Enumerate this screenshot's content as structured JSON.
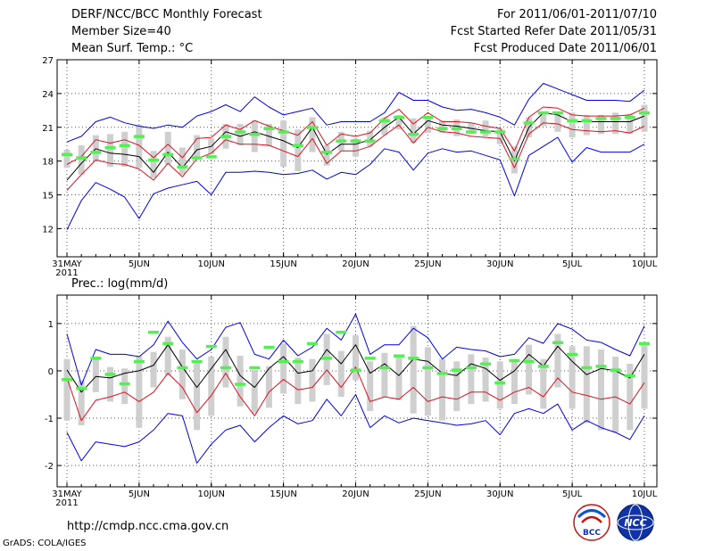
{
  "header": {
    "title": "DERF/NCC/BCC Monthly Forecast",
    "member_size": "Member Size=40",
    "variable1": "Mean Surf. Temp.: °C",
    "variable2": "Prec.: log(mm/d)",
    "range": "For 2011/06/01-2011/07/10",
    "started": "Fcst Started Refer Date 2011/05/31",
    "produced": "Fcst Produced Date 2011/06/01"
  },
  "footer": {
    "url": "http://cmdp.ncc.cma.gov.cn",
    "grads": "GrADS: COLA/IGES",
    "logo1": "BCC",
    "logo2": "NCC"
  },
  "colors": {
    "ensemble_mean": "#000000",
    "spread_inner": "#e0101e",
    "spread_outer": "#0000ee",
    "box": "#cfcfcf",
    "observed_marker": "#55ee55",
    "grid": "#555555"
  },
  "chart_data": [
    {
      "type": "line",
      "title": "Mean Surf. Temp.: °C",
      "x": [
        0,
        1,
        2,
        3,
        4,
        5,
        6,
        7,
        8,
        9,
        10,
        11,
        12,
        13,
        14,
        15,
        16,
        17,
        18,
        19,
        20,
        21,
        22,
        23,
        24,
        25,
        26,
        27,
        28,
        29,
        30,
        31,
        32,
        33,
        34,
        35,
        36,
        37,
        38,
        39,
        40
      ],
      "ylim": [
        9.5,
        27
      ],
      "yticks": [
        12,
        15,
        18,
        21,
        24,
        27
      ],
      "xticks": [
        {
          "x": 0,
          "label": "31MAY",
          "label2": "2011"
        },
        {
          "x": 5,
          "label": "5JUN"
        },
        {
          "x": 10,
          "label": "10JUN"
        },
        {
          "x": 15,
          "label": "15JUN"
        },
        {
          "x": 20,
          "label": "20JUN"
        },
        {
          "x": 25,
          "label": "25JUN"
        },
        {
          "x": 30,
          "label": "30JUN"
        },
        {
          "x": 35,
          "label": "5JUL"
        },
        {
          "x": 40,
          "label": "10JUL"
        }
      ],
      "series": [
        {
          "name": "max",
          "role": "outer",
          "values": [
            19.7,
            20.2,
            21.5,
            21.9,
            21.4,
            21.1,
            20.9,
            21.2,
            21.0,
            22.0,
            22.4,
            23.0,
            22.4,
            23.7,
            22.8,
            22.1,
            22.4,
            22.7,
            21.2,
            21.5,
            21.5,
            21.5,
            22.3,
            24.1,
            23.4,
            23.4,
            22.8,
            22.5,
            22.6,
            22.3,
            21.9,
            21.2,
            23.5,
            24.9,
            24.4,
            23.9,
            23.4,
            23.4,
            23.4,
            23.3,
            24.3
          ]
        },
        {
          "name": "upper",
          "role": "inner",
          "values": [
            17.7,
            18.4,
            19.9,
            19.6,
            19.9,
            19.4,
            18.3,
            19.5,
            18.3,
            20.0,
            20.1,
            21.2,
            20.8,
            21.6,
            21.1,
            20.7,
            20.3,
            21.5,
            19.4,
            20.4,
            20.2,
            20.5,
            21.8,
            22.6,
            21.3,
            22.3,
            21.5,
            21.5,
            21.4,
            21.1,
            20.9,
            18.9,
            21.9,
            22.8,
            22.7,
            22.1,
            22.0,
            22.0,
            22.0,
            22.1,
            22.7
          ]
        },
        {
          "name": "mean",
          "role": "mean",
          "values": [
            16.3,
            17.8,
            19.1,
            18.7,
            18.6,
            18.4,
            17.0,
            18.8,
            17.4,
            19.0,
            19.3,
            20.6,
            20.2,
            20.6,
            20.2,
            19.8,
            19.2,
            21.0,
            18.6,
            19.5,
            19.5,
            19.9,
            21.0,
            21.9,
            20.4,
            21.6,
            21.2,
            21.1,
            20.9,
            20.7,
            20.6,
            18.0,
            21.0,
            22.3,
            22.1,
            21.5,
            21.5,
            21.5,
            21.5,
            21.5,
            22.0
          ]
        },
        {
          "name": "lower",
          "role": "inner",
          "values": [
            15.4,
            16.8,
            18.1,
            17.8,
            17.7,
            17.3,
            16.3,
            17.8,
            16.6,
            18.2,
            18.7,
            19.9,
            19.5,
            19.5,
            19.4,
            18.9,
            18.4,
            20.0,
            17.8,
            18.9,
            18.9,
            19.3,
            20.3,
            21.2,
            19.6,
            21.0,
            20.6,
            20.5,
            20.2,
            20.1,
            20.0,
            17.4,
            20.4,
            21.4,
            21.3,
            20.8,
            20.7,
            20.6,
            20.7,
            20.5,
            21.1
          ]
        },
        {
          "name": "min",
          "role": "outer",
          "values": [
            11.9,
            14.5,
            16.1,
            15.5,
            14.8,
            12.9,
            15.1,
            15.6,
            15.9,
            16.2,
            15.0,
            17.0,
            17.0,
            17.1,
            17.0,
            16.8,
            16.9,
            17.2,
            16.4,
            17.0,
            16.8,
            17.7,
            19.1,
            18.8,
            17.2,
            18.7,
            19.1,
            18.8,
            18.9,
            18.5,
            18.1,
            14.9,
            18.5,
            19.3,
            20.1,
            17.9,
            19.2,
            18.8,
            18.8,
            18.8,
            19.5
          ]
        },
        {
          "name": "box_top",
          "role": "box",
          "values": [
            19.0,
            19.4,
            20.3,
            20.4,
            20.6,
            21.2,
            18.9,
            20.6,
            19.2,
            20.3,
            20.0,
            21.3,
            21.3,
            21.6,
            21.3,
            21.6,
            20.8,
            21.9,
            19.4,
            20.6,
            20.0,
            20.7,
            21.9,
            22.1,
            21.8,
            22.0,
            21.6,
            21.7,
            21.4,
            21.6,
            20.9,
            19.3,
            21.9,
            22.4,
            22.4,
            22.3,
            22.1,
            22.1,
            22.3,
            22.2,
            23.0
          ]
        },
        {
          "name": "box_bottom",
          "role": "box",
          "values": [
            17.4,
            16.8,
            18.0,
            17.5,
            17.5,
            17.4,
            16.5,
            17.7,
            16.8,
            18.3,
            18.6,
            19.1,
            19.4,
            18.8,
            19.3,
            17.5,
            17.1,
            18.8,
            17.6,
            18.9,
            18.4,
            19.3,
            20.3,
            20.8,
            19.6,
            20.5,
            20.5,
            20.2,
            20.4,
            20.2,
            19.5,
            16.9,
            20.1,
            21.1,
            20.6,
            20.1,
            20.3,
            20.4,
            20.4,
            20.4,
            20.6
          ]
        },
        {
          "name": "observed",
          "role": "marker",
          "values": [
            18.6,
            18.3,
            18.8,
            19.2,
            19.4,
            20.2,
            18.1,
            18.6,
            17.5,
            18.3,
            18.4,
            20.2,
            20.6,
            20.4,
            20.9,
            20.6,
            19.4,
            21.0,
            18.8,
            19.8,
            19.8,
            19.8,
            21.6,
            21.9,
            20.4,
            21.9,
            20.9,
            20.9,
            20.6,
            20.6,
            20.6,
            18.2,
            21.4,
            22.3,
            22.3,
            21.6,
            21.6,
            21.8,
            21.8,
            21.9,
            22.3
          ]
        }
      ]
    },
    {
      "type": "line",
      "title": "Prec.: log(mm/d)",
      "x": [
        0,
        1,
        2,
        3,
        4,
        5,
        6,
        7,
        8,
        9,
        10,
        11,
        12,
        13,
        14,
        15,
        16,
        17,
        18,
        19,
        20,
        21,
        22,
        23,
        24,
        25,
        26,
        27,
        28,
        29,
        30,
        31,
        32,
        33,
        34,
        35,
        36,
        37,
        38,
        39,
        40
      ],
      "ylim": [
        -2.45,
        1.6
      ],
      "yticks": [
        -2,
        -1,
        0,
        1
      ],
      "xticks": [
        {
          "x": 0,
          "label": "31MAY",
          "label2": "2011"
        },
        {
          "x": 5,
          "label": "5JUN"
        },
        {
          "x": 10,
          "label": "10JUN"
        },
        {
          "x": 15,
          "label": "15JUN"
        },
        {
          "x": 20,
          "label": "20JUN"
        },
        {
          "x": 25,
          "label": "25JUN"
        },
        {
          "x": 30,
          "label": "30JUN"
        },
        {
          "x": 35,
          "label": "5JUL"
        },
        {
          "x": 40,
          "label": "10JUL"
        }
      ],
      "series": [
        {
          "name": "max",
          "role": "outer",
          "values": [
            0.78,
            -0.3,
            0.45,
            0.35,
            0.35,
            0.3,
            0.55,
            1.05,
            0.6,
            0.25,
            0.45,
            0.92,
            1.02,
            0.35,
            0.25,
            0.65,
            0.32,
            0.5,
            0.9,
            0.65,
            1.2,
            0.35,
            0.55,
            0.55,
            0.9,
            0.7,
            0.25,
            0.5,
            0.45,
            0.42,
            0.3,
            0.35,
            0.7,
            0.58,
            1.0,
            0.88,
            0.65,
            0.6,
            0.45,
            0.32,
            0.95
          ]
        },
        {
          "name": "mean",
          "role": "mean",
          "values": [
            0.02,
            -0.45,
            -0.12,
            -0.15,
            -0.05,
            0.0,
            0.12,
            0.55,
            0.08,
            -0.35,
            0.05,
            0.45,
            -0.1,
            -0.35,
            0.05,
            0.3,
            -0.05,
            0.0,
            0.45,
            0.15,
            0.55,
            -0.05,
            0.15,
            -0.1,
            0.25,
            0.2,
            -0.05,
            -0.1,
            0.15,
            0.05,
            -0.2,
            0.0,
            0.35,
            0.1,
            0.52,
            0.2,
            -0.08,
            0.05,
            0.0,
            -0.15,
            0.35
          ]
        },
        {
          "name": "lower",
          "role": "inner",
          "values": [
            -0.15,
            -1.05,
            -0.62,
            -0.55,
            -0.45,
            -0.65,
            -0.45,
            -0.05,
            -0.35,
            -0.88,
            -0.52,
            -0.05,
            -0.55,
            -0.95,
            -0.45,
            -0.18,
            -0.4,
            -0.35,
            0.02,
            -0.35,
            0.08,
            -0.65,
            -0.55,
            -0.6,
            -0.35,
            -0.65,
            -0.55,
            -0.6,
            -0.45,
            -0.45,
            -0.62,
            -0.45,
            -0.35,
            -0.55,
            -0.15,
            -0.45,
            -0.52,
            -0.6,
            -0.55,
            -0.7,
            -0.25
          ]
        },
        {
          "name": "min",
          "role": "outer",
          "values": [
            -1.3,
            -1.9,
            -1.5,
            -1.55,
            -1.6,
            -1.5,
            -1.25,
            -0.9,
            -0.95,
            -1.95,
            -1.55,
            -1.25,
            -1.15,
            -1.5,
            -1.2,
            -0.95,
            -1.12,
            -1.05,
            -0.6,
            -0.95,
            -0.5,
            -1.2,
            -0.95,
            -1.1,
            -1.0,
            -1.05,
            -1.1,
            -1.15,
            -1.12,
            -1.05,
            -1.35,
            -0.9,
            -0.8,
            -0.9,
            -0.7,
            -1.25,
            -1.05,
            -1.2,
            -1.3,
            -1.45,
            -0.95
          ]
        },
        {
          "name": "box_top",
          "role": "box",
          "values": [
            0.25,
            -0.2,
            0.3,
            0.08,
            0.05,
            0.32,
            0.4,
            0.72,
            0.45,
            0.22,
            0.3,
            0.72,
            0.32,
            0.02,
            0.1,
            0.58,
            0.28,
            0.25,
            0.78,
            0.42,
            0.75,
            0.2,
            0.38,
            0.3,
            0.95,
            0.5,
            0.25,
            0.2,
            0.35,
            0.28,
            0.2,
            0.25,
            0.55,
            0.25,
            0.78,
            0.52,
            0.52,
            0.45,
            0.3,
            0.15,
            0.55
          ]
        },
        {
          "name": "box_bottom",
          "role": "box",
          "values": [
            -1.05,
            -1.15,
            -0.45,
            -0.65,
            -0.7,
            -1.2,
            -0.35,
            -0.1,
            -0.6,
            -1.25,
            -0.95,
            -0.35,
            -0.75,
            -0.9,
            -0.78,
            -0.48,
            -0.7,
            -0.65,
            -0.3,
            -0.55,
            -0.2,
            -0.85,
            -0.55,
            -0.62,
            -0.9,
            -0.95,
            -1.05,
            -0.85,
            -0.7,
            -0.65,
            -0.8,
            -0.7,
            -0.5,
            -0.8,
            -0.35,
            -0.8,
            -1.1,
            -1.25,
            -1.3,
            -1.25,
            -0.8
          ]
        },
        {
          "name": "observed",
          "role": "marker",
          "values": [
            -0.18,
            -0.37,
            0.27,
            -0.07,
            -0.27,
            0.2,
            0.82,
            0.58,
            0.07,
            0.2,
            0.52,
            0.07,
            -0.28,
            0.07,
            0.5,
            0.2,
            0.2,
            0.58,
            0.27,
            0.82,
            0.02,
            0.27,
            0.07,
            0.32,
            0.27,
            0.07,
            -0.05,
            0.02,
            0.07,
            0.15,
            -0.25,
            0.22,
            0.2,
            0.1,
            0.6,
            0.35,
            0.07,
            0.1,
            0.02,
            -0.1,
            0.58
          ]
        }
      ]
    }
  ]
}
